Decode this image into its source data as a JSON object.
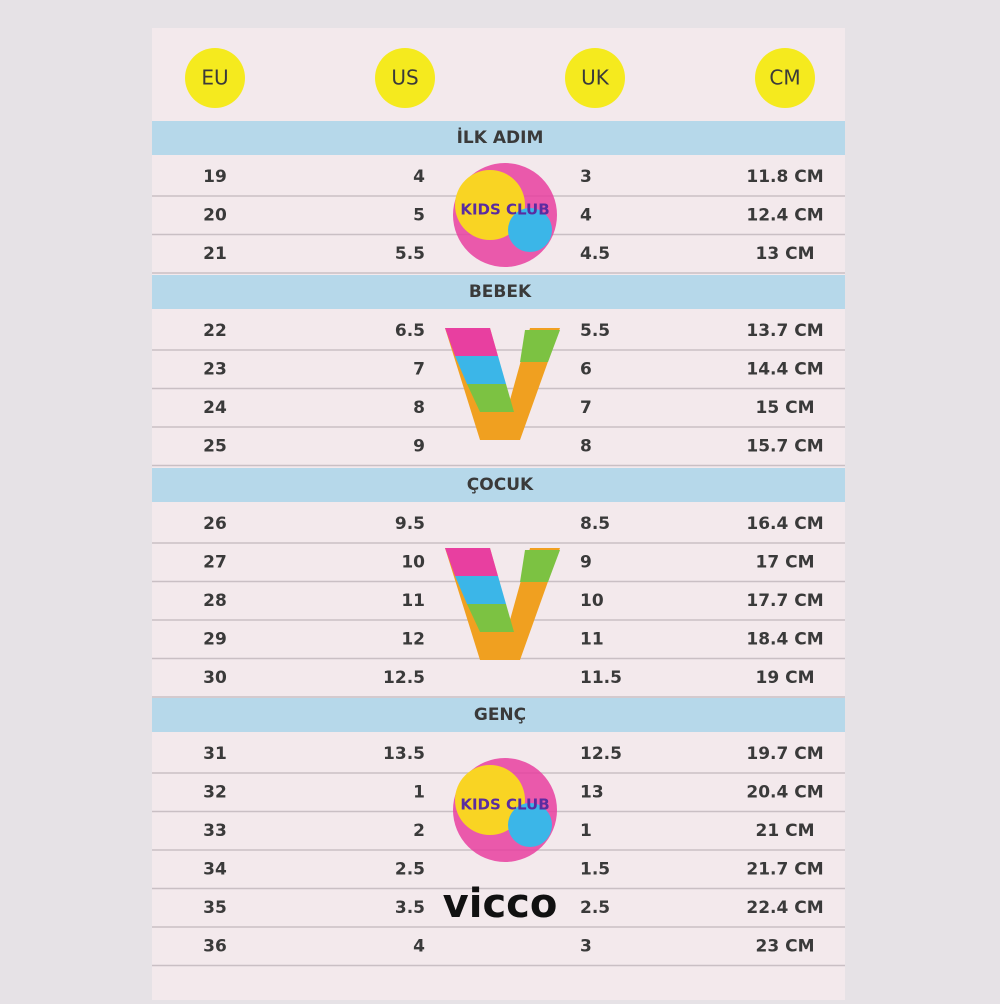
{
  "header": {
    "columns": [
      "EU",
      "US",
      "UK",
      "CM"
    ]
  },
  "sections": [
    {
      "title": "İLK ADIM",
      "rows": [
        [
          "19",
          "4",
          "3",
          "11.8 CM"
        ],
        [
          "20",
          "5",
          "4",
          "12.4 CM"
        ],
        [
          "21",
          "5.5",
          "4.5",
          "13 CM"
        ]
      ]
    },
    {
      "title": "BEBEK",
      "rows": [
        [
          "22",
          "6.5",
          "5.5",
          "13.7 CM"
        ],
        [
          "23",
          "7",
          "6",
          "14.4 CM"
        ],
        [
          "24",
          "8",
          "7",
          "15 CM"
        ],
        [
          "25",
          "9",
          "8",
          "15.7 CM"
        ]
      ]
    },
    {
      "title": "ÇOCUK",
      "rows": [
        [
          "26",
          "9.5",
          "8.5",
          "16.4 CM"
        ],
        [
          "27",
          "10",
          "9",
          "17 CM"
        ],
        [
          "28",
          "11",
          "10",
          "17.7 CM"
        ],
        [
          "29",
          "12",
          "11",
          "18.4 CM"
        ],
        [
          "30",
          "12.5",
          "11.5",
          "19 CM"
        ]
      ]
    },
    {
      "title": "GENÇ",
      "rows": [
        [
          "31",
          "13.5",
          "12.5",
          "19.7 CM"
        ],
        [
          "32",
          "1",
          "13",
          "20.4 CM"
        ],
        [
          "33",
          "2",
          "1",
          "21 CM"
        ],
        [
          "34",
          "2.5",
          "1.5",
          "21.7 CM"
        ],
        [
          "35",
          "3.5",
          "2.5",
          "22.4 CM"
        ],
        [
          "36",
          "4",
          "3",
          "23 CM"
        ]
      ]
    }
  ],
  "logos": {
    "kids_club": "KIDS CLUB",
    "brand": "vicco"
  }
}
